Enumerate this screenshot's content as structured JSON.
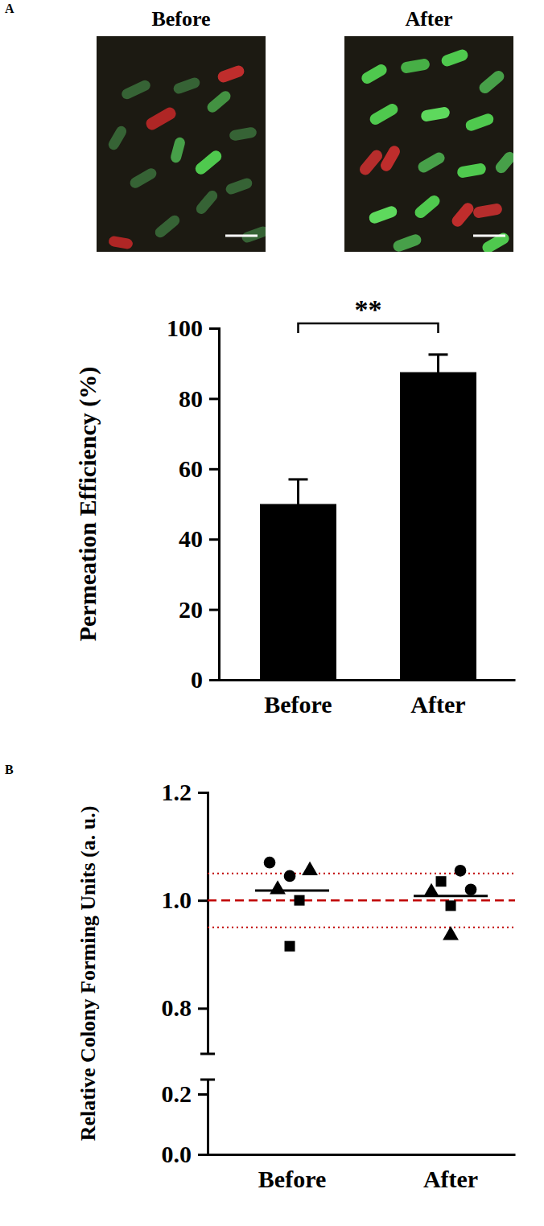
{
  "figure": {
    "panel_labels": [
      "A",
      "B"
    ],
    "image_titles": [
      "Before",
      "After"
    ]
  },
  "chart_data": [
    {
      "type": "bar",
      "categories": [
        "Before",
        "After"
      ],
      "values": [
        50,
        87.5
      ],
      "errors": [
        7,
        5
      ],
      "color": "#000000",
      "y_label": "Permeation Efficiency (%)",
      "ylim": [
        0,
        100
      ],
      "yticks": [
        0,
        20,
        40,
        60,
        80,
        100
      ],
      "annotations": [
        {
          "text": "**"
        }
      ]
    },
    {
      "type": "scatter",
      "categories": [
        "Before",
        "After"
      ],
      "color": "#000000",
      "y_label": "Relative Colony Forming Units (a. u.)",
      "ylim": [
        0,
        1.2
      ],
      "yticks": [
        {
          "value": 0,
          "label": "0.0"
        },
        {
          "value": 0.2,
          "label": "0.2"
        },
        {
          "value": 0.8,
          "label": "0.8"
        },
        {
          "value": 1,
          "label": "1.0"
        },
        {
          "value": 1.2,
          "label": "1.2"
        }
      ],
      "y_break": [
        0.24,
        0.72
      ],
      "series": [
        {
          "marker": "circle",
          "x": [
            "Before",
            "Before",
            "After",
            "After"
          ],
          "values": [
            1.07,
            1.045,
            1.055,
            1.02
          ]
        },
        {
          "marker": "triangle",
          "x": [
            "Before",
            "Before",
            "After",
            "After"
          ],
          "values": [
            1.02,
            1.055,
            1.015,
            0.935
          ]
        },
        {
          "marker": "square",
          "x": [
            "Before",
            "Before",
            "After",
            "After"
          ],
          "values": [
            1.0,
            0.915,
            1.035,
            0.99
          ]
        }
      ],
      "means": [
        1.018,
        1.008
      ],
      "reference_lines": [
        {
          "value": 1.0,
          "line_style": "dashed",
          "color": "#c00000"
        },
        {
          "value": 0.95,
          "line_style": "dotted",
          "color": "#c00000"
        },
        {
          "value": 1.05,
          "line_style": "dotted",
          "color": "#c00000"
        }
      ]
    }
  ]
}
